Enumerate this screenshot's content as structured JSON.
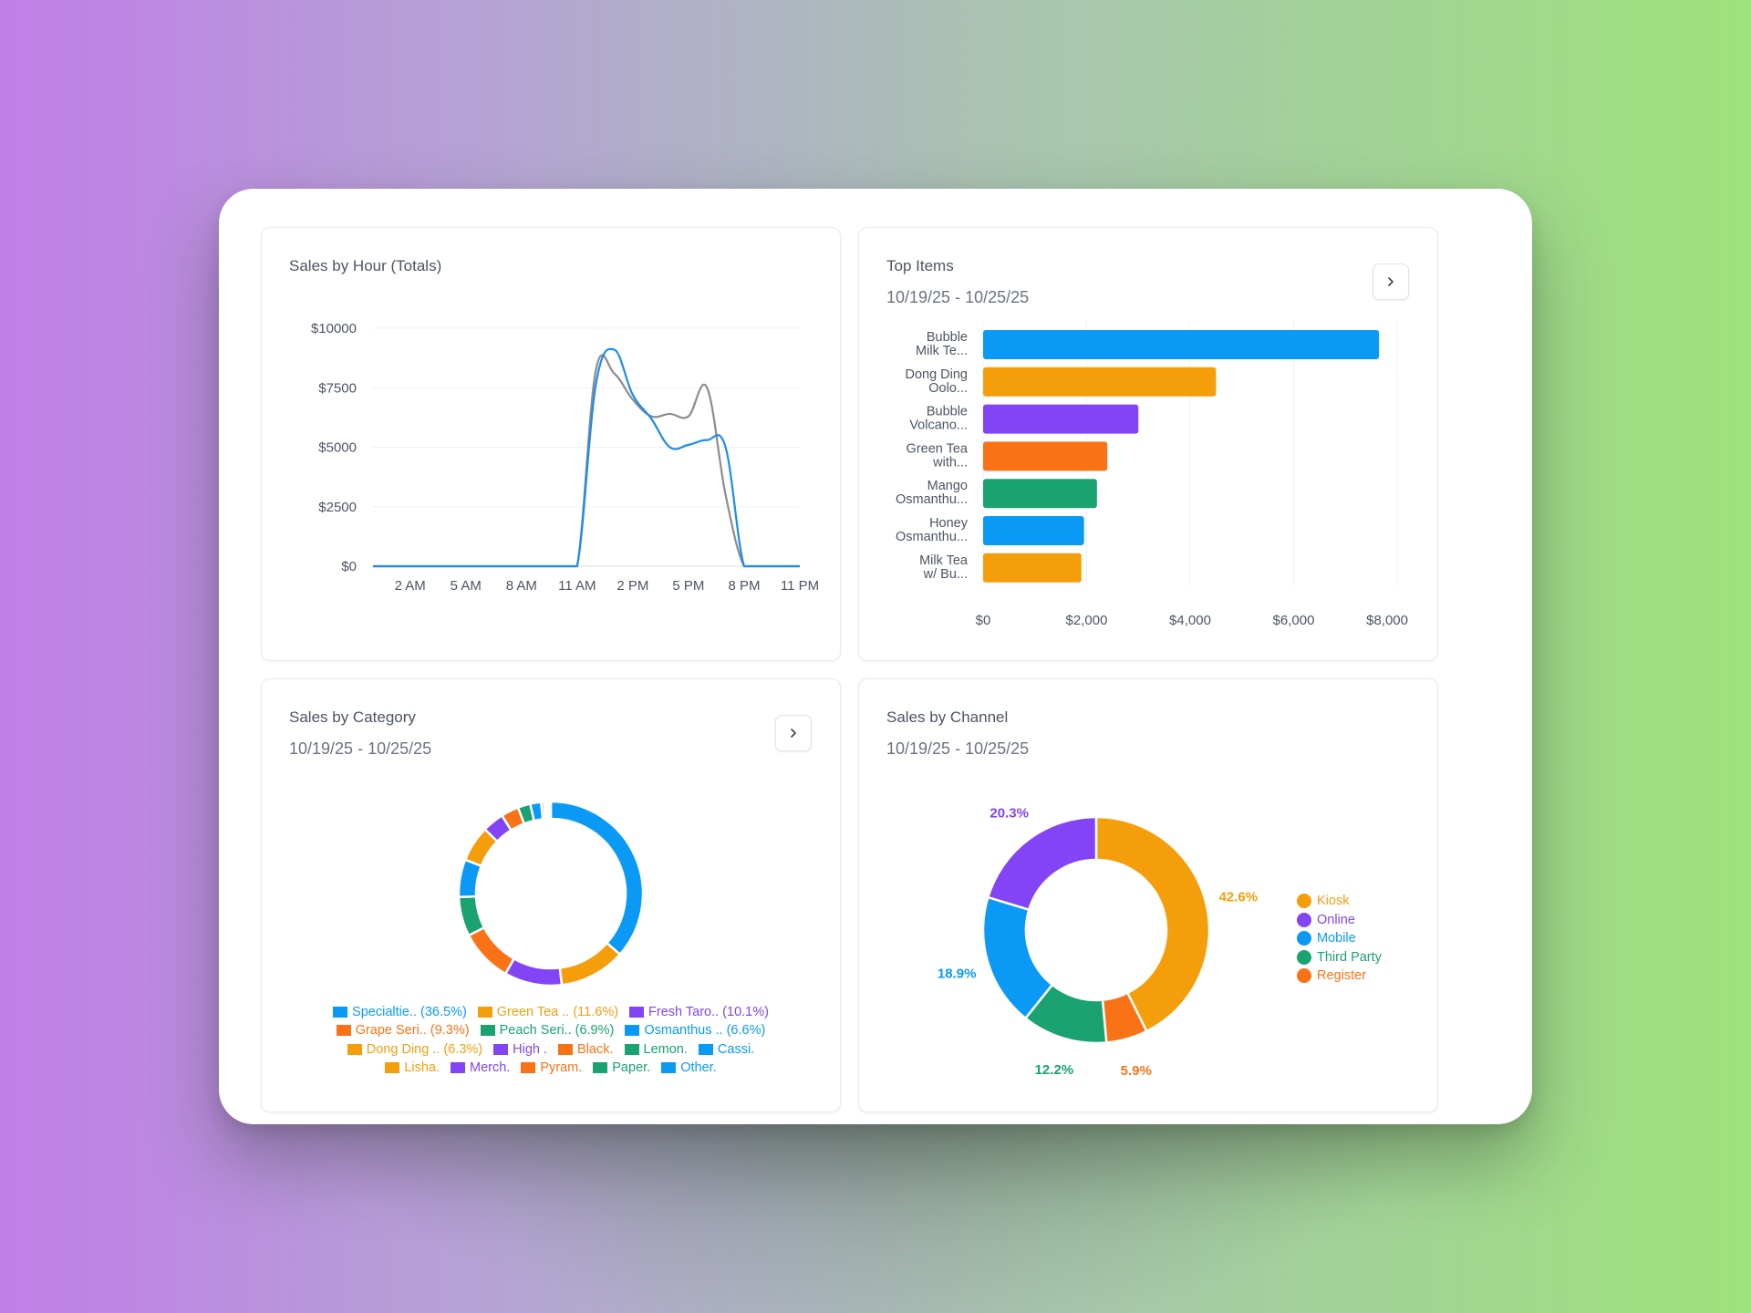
{
  "cards": {
    "hourly": {
      "title": "Sales by Hour (Totals)"
    },
    "top_items": {
      "title": "Top Items",
      "date_range": "10/19/25 - 10/25/25"
    },
    "category": {
      "title": "Sales by Category",
      "date_range": "10/19/25 - 10/25/25"
    },
    "channel": {
      "title": "Sales by Channel",
      "date_range": "10/19/25 - 10/25/25"
    }
  },
  "icons": {
    "expand": "chevron-right-icon"
  },
  "chart_data": [
    {
      "type": "line",
      "title": "Sales by Hour (Totals)",
      "x": [
        0,
        1,
        2,
        3,
        4,
        5,
        6,
        7,
        8,
        9,
        10,
        11,
        12,
        13,
        14,
        15,
        16,
        17,
        18,
        19,
        20,
        21,
        22,
        23
      ],
      "x_tick_labels": [
        "2 AM",
        "5 AM",
        "8 AM",
        "11 AM",
        "2 PM",
        "5 PM",
        "8 PM",
        "11 PM"
      ],
      "x_tick_hours": [
        2,
        5,
        8,
        11,
        14,
        17,
        20,
        23
      ],
      "y_tick_labels": [
        "$0",
        "$2500",
        "$5000",
        "$7500",
        "$10000"
      ],
      "ylim": [
        0,
        10000
      ],
      "grid": true,
      "series": [
        {
          "color": "#1a8cf0",
          "values": [
            0,
            0,
            0,
            0,
            0,
            0,
            0,
            0,
            0,
            0,
            0,
            0,
            7600,
            9100,
            7200,
            6200,
            5000,
            5100,
            5300,
            5000,
            0,
            0,
            0,
            0
          ]
        },
        {
          "color": "#8c8c8c",
          "values": [
            0,
            0,
            0,
            0,
            0,
            0,
            0,
            0,
            0,
            0,
            0,
            0,
            8200,
            8100,
            7000,
            6300,
            6400,
            6300,
            7500,
            3000,
            0,
            0,
            0,
            0
          ]
        }
      ]
    },
    {
      "type": "bar",
      "orientation": "horizontal",
      "title": "Top Items",
      "categories": [
        [
          "Bubble",
          "Milk Te..."
        ],
        [
          "Dong Ding",
          "Oolo..."
        ],
        [
          "Bubble",
          "Volcano..."
        ],
        [
          "Green Tea",
          "with..."
        ],
        [
          "Mango",
          "Osmanthu..."
        ],
        [
          "Honey",
          "Osmanthu..."
        ],
        [
          "Milk Tea",
          "w/ Bu..."
        ]
      ],
      "values": [
        7650,
        4500,
        3000,
        2400,
        2200,
        1950,
        1900
      ],
      "colors": [
        "#0a9af5",
        "#f59e0b",
        "#8344f5",
        "#f97316",
        "#1aa271",
        "#0a9af5",
        "#f59e0b"
      ],
      "x_tick_labels": [
        "$0",
        "$2,000",
        "$4,000",
        "$6,000",
        "$8,000"
      ],
      "xlim": [
        0,
        8000
      ],
      "grid": true
    },
    {
      "type": "pie",
      "style": "donut",
      "title": "Sales by Category",
      "legend_position": "bottom",
      "slices": [
        {
          "label": "Specialtie.. (36.5%)",
          "value": 36.5,
          "color": "#0a9af5"
        },
        {
          "label": "Green Tea .. (11.6%)",
          "value": 11.6,
          "color": "#f59e0b"
        },
        {
          "label": "Fresh Taro.. (10.1%)",
          "value": 10.1,
          "color": "#8344f5"
        },
        {
          "label": "Grape Seri.. (9.3%)",
          "value": 9.3,
          "color": "#f97316"
        },
        {
          "label": "Peach Seri.. (6.9%)",
          "value": 6.9,
          "color": "#1aa271"
        },
        {
          "label": "Osmanthus .. (6.6%)",
          "value": 6.6,
          "color": "#0a9af5"
        },
        {
          "label": "Dong Ding .. (6.3%)",
          "value": 6.3,
          "color": "#f59e0b"
        },
        {
          "label": "High .",
          "value": 3.8,
          "color": "#8344f5"
        },
        {
          "label": "Black.",
          "value": 3.1,
          "color": "#f97316"
        },
        {
          "label": "Lemon.",
          "value": 2.2,
          "color": "#1aa271"
        },
        {
          "label": "Cassi.",
          "value": 1.9,
          "color": "#0a9af5"
        },
        {
          "label": "Lisha.",
          "value": 0.5,
          "color": "#f59e0b"
        },
        {
          "label": "Merch.",
          "value": 0.4,
          "color": "#8344f5"
        },
        {
          "label": "Pyram.",
          "value": 0.3,
          "color": "#f97316"
        },
        {
          "label": "Paper.",
          "value": 0.25,
          "color": "#1aa271"
        },
        {
          "label": "Other.",
          "value": 0.25,
          "color": "#0a9af5"
        }
      ]
    },
    {
      "type": "pie",
      "style": "donut",
      "title": "Sales by Channel",
      "legend_position": "right",
      "slices": [
        {
          "label": "Kiosk",
          "value": 42.6,
          "value_label": "42.6%",
          "color": "#f59e0b"
        },
        {
          "label": "Register",
          "value": 5.9,
          "value_label": "5.9%",
          "color": "#f97316"
        },
        {
          "label": "Third Party",
          "value": 12.2,
          "value_label": "12.2%",
          "color": "#1aa271"
        },
        {
          "label": "Mobile",
          "value": 18.9,
          "value_label": "18.9%",
          "color": "#0a9af5"
        },
        {
          "label": "Online",
          "value": 20.3,
          "value_label": "20.3%",
          "color": "#8344f5"
        }
      ],
      "legend_order": [
        "Kiosk",
        "Online",
        "Mobile",
        "Third Party",
        "Register"
      ]
    }
  ]
}
